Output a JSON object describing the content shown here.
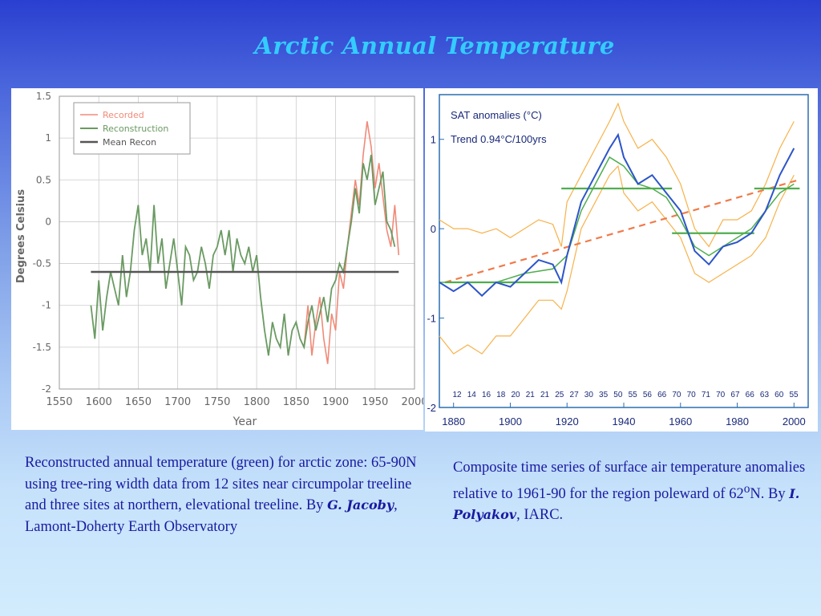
{
  "title": "Arctic Annual Temperature",
  "colors": {
    "title": "#33ccff",
    "caption": "#1a1aa0",
    "recorded": "#f08a78",
    "reconstruction": "#6a9a62",
    "mean_recon": "#555555",
    "right_blue": "#2c55c8",
    "right_orange": "#f7b24a",
    "right_green": "#4fae4f",
    "right_trend": "#f07a4a",
    "right_frame": "#2a6fb0",
    "left_tick": "#666666"
  },
  "left_caption": {
    "before": "Reconstructed annual temperature (green) for arctic zone: 65-90N using tree-ring width data from 12 sites near circumpolar treeline and three sites at northern, elevational treeline. By ",
    "author": "G. Jacoby",
    "after": ", Lamont-Doherty Earth Observatory"
  },
  "right_caption": {
    "before": "Composite time series of surface air temperature anomalies relative to 1961-90 for the region poleward of 62",
    "sup": "o",
    "mid": "N. By ",
    "author": "I. Polyakov",
    "after": ", IARC."
  },
  "chart_data": [
    {
      "type": "line",
      "xlabel": "Year",
      "ylabel": "Degrees Celsius",
      "xlim": [
        1550,
        2000
      ],
      "ylim": [
        -2,
        1.5
      ],
      "xticks": [
        "1550",
        "1600",
        "1650",
        "1700",
        "1750",
        "1800",
        "1850",
        "1900",
        "1950",
        "2000"
      ],
      "yticks": [
        "1.5",
        "1",
        "0.5",
        "0",
        "-0.5",
        "-1",
        "-1.5",
        "-2"
      ],
      "legend": [
        "Recorded",
        "Reconstruction",
        "Mean Recon"
      ],
      "legend_position": "top-left",
      "grid": true,
      "series": [
        {
          "name": "Reconstruction",
          "x": [
            1590,
            1595,
            1600,
            1605,
            1610,
            1615,
            1620,
            1625,
            1630,
            1635,
            1640,
            1645,
            1650,
            1655,
            1660,
            1665,
            1670,
            1675,
            1680,
            1685,
            1690,
            1695,
            1700,
            1705,
            1710,
            1715,
            1720,
            1725,
            1730,
            1735,
            1740,
            1745,
            1750,
            1755,
            1760,
            1765,
            1770,
            1775,
            1780,
            1785,
            1790,
            1795,
            1800,
            1805,
            1810,
            1815,
            1820,
            1825,
            1830,
            1835,
            1840,
            1845,
            1850,
            1855,
            1860,
            1865,
            1870,
            1875,
            1880,
            1885,
            1890,
            1895,
            1900,
            1905,
            1910,
            1915,
            1920,
            1925,
            1930,
            1935,
            1940,
            1945,
            1950,
            1955,
            1960,
            1965,
            1970,
            1975
          ],
          "values": [
            -1.0,
            -1.4,
            -0.7,
            -1.3,
            -0.9,
            -0.6,
            -0.8,
            -1.0,
            -0.4,
            -0.9,
            -0.6,
            -0.1,
            0.2,
            -0.4,
            -0.2,
            -0.6,
            0.2,
            -0.5,
            -0.2,
            -0.8,
            -0.5,
            -0.2,
            -0.6,
            -1.0,
            -0.3,
            -0.4,
            -0.7,
            -0.6,
            -0.3,
            -0.5,
            -0.8,
            -0.4,
            -0.3,
            -0.1,
            -0.4,
            -0.1,
            -0.6,
            -0.2,
            -0.4,
            -0.5,
            -0.3,
            -0.6,
            -0.4,
            -0.9,
            -1.3,
            -1.6,
            -1.2,
            -1.4,
            -1.5,
            -1.1,
            -1.6,
            -1.3,
            -1.2,
            -1.4,
            -1.5,
            -1.2,
            -1.0,
            -1.3,
            -1.1,
            -0.9,
            -1.2,
            -0.8,
            -0.7,
            -0.5,
            -0.6,
            -0.3,
            0.0,
            0.4,
            0.1,
            0.7,
            0.5,
            0.8,
            0.2,
            0.4,
            0.6,
            0.0,
            -0.1,
            -0.3
          ]
        },
        {
          "name": "Recorded",
          "x": [
            1860,
            1865,
            1870,
            1875,
            1880,
            1885,
            1890,
            1895,
            1900,
            1905,
            1910,
            1915,
            1920,
            1925,
            1930,
            1935,
            1940,
            1945,
            1950,
            1955,
            1960,
            1965,
            1970,
            1975,
            1980
          ],
          "values": [
            -1.5,
            -1.0,
            -1.6,
            -1.2,
            -0.9,
            -1.4,
            -1.7,
            -1.1,
            -1.3,
            -0.6,
            -0.8,
            -0.3,
            0.1,
            0.5,
            0.2,
            0.8,
            1.2,
            0.9,
            0.4,
            0.7,
            0.3,
            -0.1,
            -0.3,
            0.2,
            -0.4
          ]
        },
        {
          "name": "Mean Recon",
          "x": [
            1590,
            1980
          ],
          "values": [
            -0.6,
            -0.6
          ]
        }
      ]
    },
    {
      "type": "line",
      "title": "SAT anomalies (°C)",
      "subtitle": "Trend 0.94°C/100yrs",
      "xlim": [
        1875,
        2005
      ],
      "ylim": [
        -2,
        1.5
      ],
      "xticks": [
        "1880",
        "1900",
        "1920",
        "1940",
        "1960",
        "1980",
        "2000"
      ],
      "yticks": [
        "1",
        "0",
        "-1",
        "-2"
      ],
      "counts": [
        "12",
        "14",
        "16",
        "18",
        "20",
        "21",
        "21",
        "25",
        "27",
        "30",
        "35",
        "50",
        "55",
        "56",
        "66",
        "70",
        "70",
        "71",
        "70",
        "67",
        "66",
        "63",
        "60",
        "55"
      ],
      "grid": false,
      "series": [
        {
          "name": "anomaly",
          "x": [
            1875,
            1880,
            1885,
            1890,
            1895,
            1900,
            1905,
            1910,
            1915,
            1918,
            1920,
            1925,
            1930,
            1935,
            1938,
            1940,
            1945,
            1950,
            1955,
            1960,
            1965,
            1970,
            1975,
            1980,
            1985,
            1990,
            1995,
            2000
          ],
          "values": [
            -0.6,
            -0.7,
            -0.6,
            -0.75,
            -0.6,
            -0.65,
            -0.5,
            -0.35,
            -0.4,
            -0.6,
            -0.3,
            0.3,
            0.6,
            0.9,
            1.05,
            0.8,
            0.5,
            0.6,
            0.4,
            0.2,
            -0.25,
            -0.4,
            -0.2,
            -0.15,
            -0.05,
            0.2,
            0.6,
            0.9
          ]
        },
        {
          "name": "upper",
          "x": [
            1875,
            1880,
            1885,
            1890,
            1895,
            1900,
            1905,
            1910,
            1915,
            1918,
            1920,
            1925,
            1930,
            1935,
            1938,
            1940,
            1945,
            1950,
            1955,
            1960,
            1965,
            1970,
            1975,
            1980,
            1985,
            1990,
            1995,
            2000
          ],
          "values": [
            0.1,
            0.0,
            0.0,
            -0.05,
            0.0,
            -0.1,
            0.0,
            0.1,
            0.05,
            -0.2,
            0.3,
            0.6,
            0.9,
            1.2,
            1.4,
            1.2,
            0.9,
            1.0,
            0.8,
            0.5,
            0.0,
            -0.2,
            0.1,
            0.1,
            0.2,
            0.5,
            0.9,
            1.2
          ]
        },
        {
          "name": "lower",
          "x": [
            1875,
            1880,
            1885,
            1890,
            1895,
            1900,
            1905,
            1910,
            1915,
            1918,
            1920,
            1925,
            1930,
            1935,
            1938,
            1940,
            1945,
            1950,
            1955,
            1960,
            1965,
            1970,
            1975,
            1980,
            1985,
            1990,
            1995,
            2000
          ],
          "values": [
            -1.2,
            -1.4,
            -1.3,
            -1.4,
            -1.2,
            -1.2,
            -1.0,
            -0.8,
            -0.8,
            -0.9,
            -0.7,
            0.0,
            0.3,
            0.6,
            0.7,
            0.4,
            0.2,
            0.3,
            0.1,
            -0.1,
            -0.5,
            -0.6,
            -0.5,
            -0.4,
            -0.3,
            -0.1,
            0.3,
            0.6
          ]
        },
        {
          "name": "smoothed",
          "x": [
            1875,
            1885,
            1895,
            1905,
            1915,
            1920,
            1925,
            1930,
            1935,
            1940,
            1945,
            1950,
            1955,
            1960,
            1965,
            1970,
            1975,
            1980,
            1985,
            1990,
            1995,
            2000
          ],
          "values": [
            -0.6,
            -0.6,
            -0.6,
            -0.5,
            -0.45,
            -0.3,
            0.2,
            0.5,
            0.8,
            0.7,
            0.5,
            0.45,
            0.35,
            0.1,
            -0.2,
            -0.3,
            -0.2,
            -0.1,
            0.0,
            0.2,
            0.4,
            0.5
          ]
        },
        {
          "name": "period means",
          "segments": [
            {
              "x": [
                1877,
                1917
              ],
              "value": -0.6
            },
            {
              "x": [
                1918,
                1957
              ],
              "value": 0.45
            },
            {
              "x": [
                1957,
                1986
              ],
              "value": -0.05
            },
            {
              "x": [
                1986,
                2002
              ],
              "value": 0.45
            }
          ]
        },
        {
          "name": "trend",
          "x": [
            1877,
            2002
          ],
          "values": [
            -0.6,
            0.55
          ]
        }
      ]
    }
  ]
}
